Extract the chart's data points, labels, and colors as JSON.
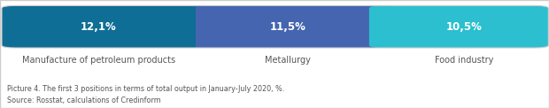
{
  "bars": [
    {
      "label": "12,1%",
      "sublabel": "Manufacture of petroleum products",
      "value": 12.1,
      "color": "#0e6e96"
    },
    {
      "label": "11,5%",
      "sublabel": "Metallurgy",
      "value": 11.5,
      "color": "#4565b0"
    },
    {
      "label": "10,5%",
      "sublabel": "Food industry",
      "value": 10.5,
      "color": "#2bbfcf"
    }
  ],
  "caption_line1": "Picture 4. The first 3 positions in terms of total output in January-July 2020, %.",
  "caption_line2": "Source: Rosstat, calculations of Credinform",
  "bg_color": "#ffffff",
  "bar_text_color": "#ffffff",
  "sublabel_color": "#555555",
  "caption_color": "#555555",
  "border_color": "#cccccc"
}
